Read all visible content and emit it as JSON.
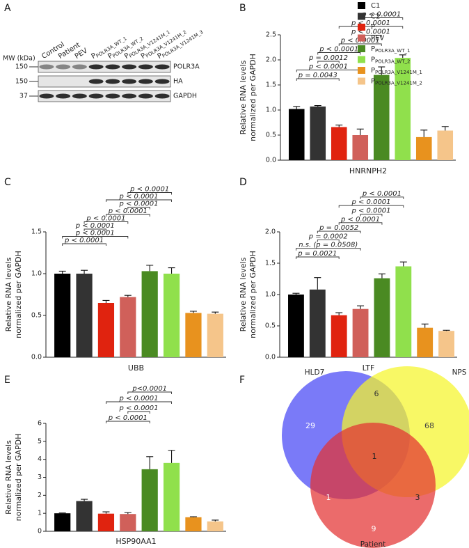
{
  "panel_labels": [
    "A",
    "B",
    "C",
    "D",
    "E",
    "F"
  ],
  "blot": {
    "mw_label": "MW (kDa)",
    "lanes": [
      "Control",
      "Patient",
      "PEV",
      {
        "text": "P",
        "sub": "POLR3A_WT_1"
      },
      {
        "text": "P",
        "sub": "POLR3A_WT_2"
      },
      {
        "text": "P",
        "sub": "POLR3A_V1241M_1"
      },
      {
        "text": "P",
        "sub": "POLR3A_V1241M_2"
      },
      {
        "text": "P",
        "sub": "POLR3A_V1241M_3"
      }
    ],
    "rows": [
      {
        "marker": "150",
        "label": "POLR3A"
      },
      {
        "marker": "150",
        "label": "HA"
      },
      {
        "marker": "37",
        "label": "GAPDH"
      }
    ]
  },
  "chart_data": [
    {
      "type": "bar",
      "xlabel": "HNRNPH2",
      "ylabel": [
        "Relative RNA levels",
        "normalized per GAPDH"
      ],
      "categories": [
        "C1",
        "C2",
        "P",
        "PEV",
        {
          "text": "P",
          "sub": "POLR3A_WT_1"
        },
        {
          "text": "P",
          "sub": "POLR3A_WT_2"
        },
        {
          "text": "P",
          "sub": "POLR3A_V1241M_1"
        },
        {
          "text": "P",
          "sub": "POLR3A_V1241M_2"
        }
      ],
      "colors": [
        "#000000",
        "#333333",
        "#e0230f",
        "#d0605a",
        "#4a8a22",
        "#90e04c",
        "#e8921e",
        "#f5c58a"
      ],
      "values": [
        1.02,
        1.07,
        0.66,
        0.5,
        1.7,
        2.04,
        0.46,
        0.59
      ],
      "errors": [
        0.05,
        0.02,
        0.04,
        0.12,
        0.16,
        0.06,
        0.14,
        0.08
      ],
      "ylim": [
        0,
        2.5
      ],
      "yticks": [
        {
          "value": 0,
          "label": "0.0"
        },
        0.5,
        {
          "value": 1,
          "label": "1.0"
        },
        1.5,
        {
          "value": 2,
          "label": "2.0"
        },
        2.5
      ],
      "comparisons": [
        {
          "from": 0,
          "to": 2,
          "label": "p = 0.0043"
        },
        {
          "from": 0,
          "to": 3,
          "label": "p < 0.0001"
        },
        {
          "from": 1,
          "to": 2,
          "label": "p = 0.0012"
        },
        {
          "from": 1,
          "to": 3,
          "label": "p < 0.0001"
        },
        {
          "from": 2,
          "to": 4,
          "label": "p < 0.0001"
        },
        {
          "from": 3,
          "to": 4,
          "label": "p < 0.0001"
        },
        {
          "from": 2,
          "to": 5,
          "label": "p < 0.0001"
        },
        {
          "from": 3,
          "to": 5,
          "label": "p < 0.0001"
        }
      ]
    },
    {
      "type": "bar",
      "xlabel": "UBB",
      "ylabel": [
        "Relative RNA levels",
        "normalized per GAPDH"
      ],
      "colors": [
        "#000000",
        "#333333",
        "#e0230f",
        "#d0605a",
        "#4a8a22",
        "#90e04c",
        "#e8921e",
        "#f5c58a"
      ],
      "values": [
        1.0,
        1.0,
        0.65,
        0.72,
        1.03,
        1.0,
        0.53,
        0.52
      ],
      "errors": [
        0.03,
        0.04,
        0.03,
        0.02,
        0.07,
        0.07,
        0.02,
        0.02
      ],
      "ylim": [
        0,
        1.5
      ],
      "yticks": [
        {
          "value": 0,
          "label": "0.0"
        },
        0.5,
        {
          "value": 1,
          "label": "1.0"
        },
        1.5
      ],
      "comparisons": [
        {
          "from": 0,
          "to": 2,
          "label": "p < 0.0001"
        },
        {
          "from": 0,
          "to": 3,
          "label": "p < 0.0001"
        },
        {
          "from": 1,
          "to": 2,
          "label": "p < 0.0001"
        },
        {
          "from": 1,
          "to": 3,
          "label": "p < 0.0001"
        },
        {
          "from": 2,
          "to": 4,
          "label": "p < 0.0001"
        },
        {
          "from": 3,
          "to": 4,
          "label": "p < 0.0001"
        },
        {
          "from": 2,
          "to": 5,
          "label": "p < 0.0001"
        },
        {
          "from": 3,
          "to": 5,
          "label": "p < 0.0001"
        }
      ]
    },
    {
      "type": "bar",
      "xlabel": "LTF",
      "ylabel": [
        "Relative RNA levels",
        "normalized per GAPDH"
      ],
      "colors": [
        "#000000",
        "#333333",
        "#e0230f",
        "#d0605a",
        "#4a8a22",
        "#90e04c",
        "#e8921e",
        "#f5c58a"
      ],
      "values": [
        1.0,
        1.08,
        0.67,
        0.77,
        1.26,
        1.45,
        0.47,
        0.42
      ],
      "errors": [
        0.02,
        0.19,
        0.04,
        0.05,
        0.07,
        0.07,
        0.06,
        0.01
      ],
      "ylim": [
        0,
        2
      ],
      "yticks": [
        {
          "value": 0,
          "label": "0.0"
        },
        0.5,
        {
          "value": 1,
          "label": "1.0"
        },
        1.5,
        {
          "value": 2,
          "label": "2.0"
        }
      ],
      "comparisons": [
        {
          "from": 0,
          "to": 2,
          "label": "p = 0.0021"
        },
        {
          "from": 0,
          "to": 3,
          "label": "n.s. (p = 0.0508)"
        },
        {
          "from": 1,
          "to": 2,
          "label": "p = 0.0002"
        },
        {
          "from": 1,
          "to": 3,
          "label": "p = 0.0052"
        },
        {
          "from": 2,
          "to": 4,
          "label": "p < 0.0001"
        },
        {
          "from": 3,
          "to": 4,
          "label": "p < 0.0001"
        },
        {
          "from": 2,
          "to": 5,
          "label": "p < 0.0001"
        },
        {
          "from": 3,
          "to": 5,
          "label": "p < 0.0001"
        }
      ]
    },
    {
      "type": "bar",
      "xlabel": "HSP90AA1",
      "ylabel": [
        "Relative RNA levels",
        "normalized per GAPDH"
      ],
      "colors": [
        "#000000",
        "#333333",
        "#e0230f",
        "#d0605a",
        "#4a8a22",
        "#90e04c",
        "#e8921e",
        "#f5c58a"
      ],
      "values": [
        1.0,
        1.68,
        0.98,
        0.96,
        3.45,
        3.8,
        0.78,
        0.55
      ],
      "errors": [
        0.02,
        0.1,
        0.1,
        0.08,
        0.7,
        0.7,
        0.03,
        0.07
      ],
      "ylim": [
        0,
        6
      ],
      "yticks": [
        0,
        1,
        2,
        3,
        4,
        5,
        6
      ],
      "comparisons": [
        {
          "from": 2,
          "to": 4,
          "label": "p < 0.0001"
        },
        {
          "from": 3,
          "to": 4,
          "label": "p < 0.0001"
        },
        {
          "from": 2,
          "to": 5,
          "label": "p < 0.0001"
        },
        {
          "from": 3,
          "to": 5,
          "label": "p<0.0001"
        }
      ]
    },
    {
      "type": "venn",
      "sets": [
        {
          "name": "HLD7",
          "color": "#4646f5"
        },
        {
          "name": "NPS",
          "color": "#f5f52a"
        },
        {
          "name": "Patient",
          "color": "#e33232"
        }
      ],
      "regions": [
        {
          "sets": [
            0
          ],
          "value": 29
        },
        {
          "sets": [
            0,
            1
          ],
          "value": 6
        },
        {
          "sets": [
            1
          ],
          "value": 68
        },
        {
          "sets": [
            0,
            1,
            2
          ],
          "value": 1
        },
        {
          "sets": [
            0,
            2
          ],
          "value": 1
        },
        {
          "sets": [
            1,
            2
          ],
          "value": 3
        },
        {
          "sets": [
            2
          ],
          "value": 9
        }
      ]
    }
  ]
}
